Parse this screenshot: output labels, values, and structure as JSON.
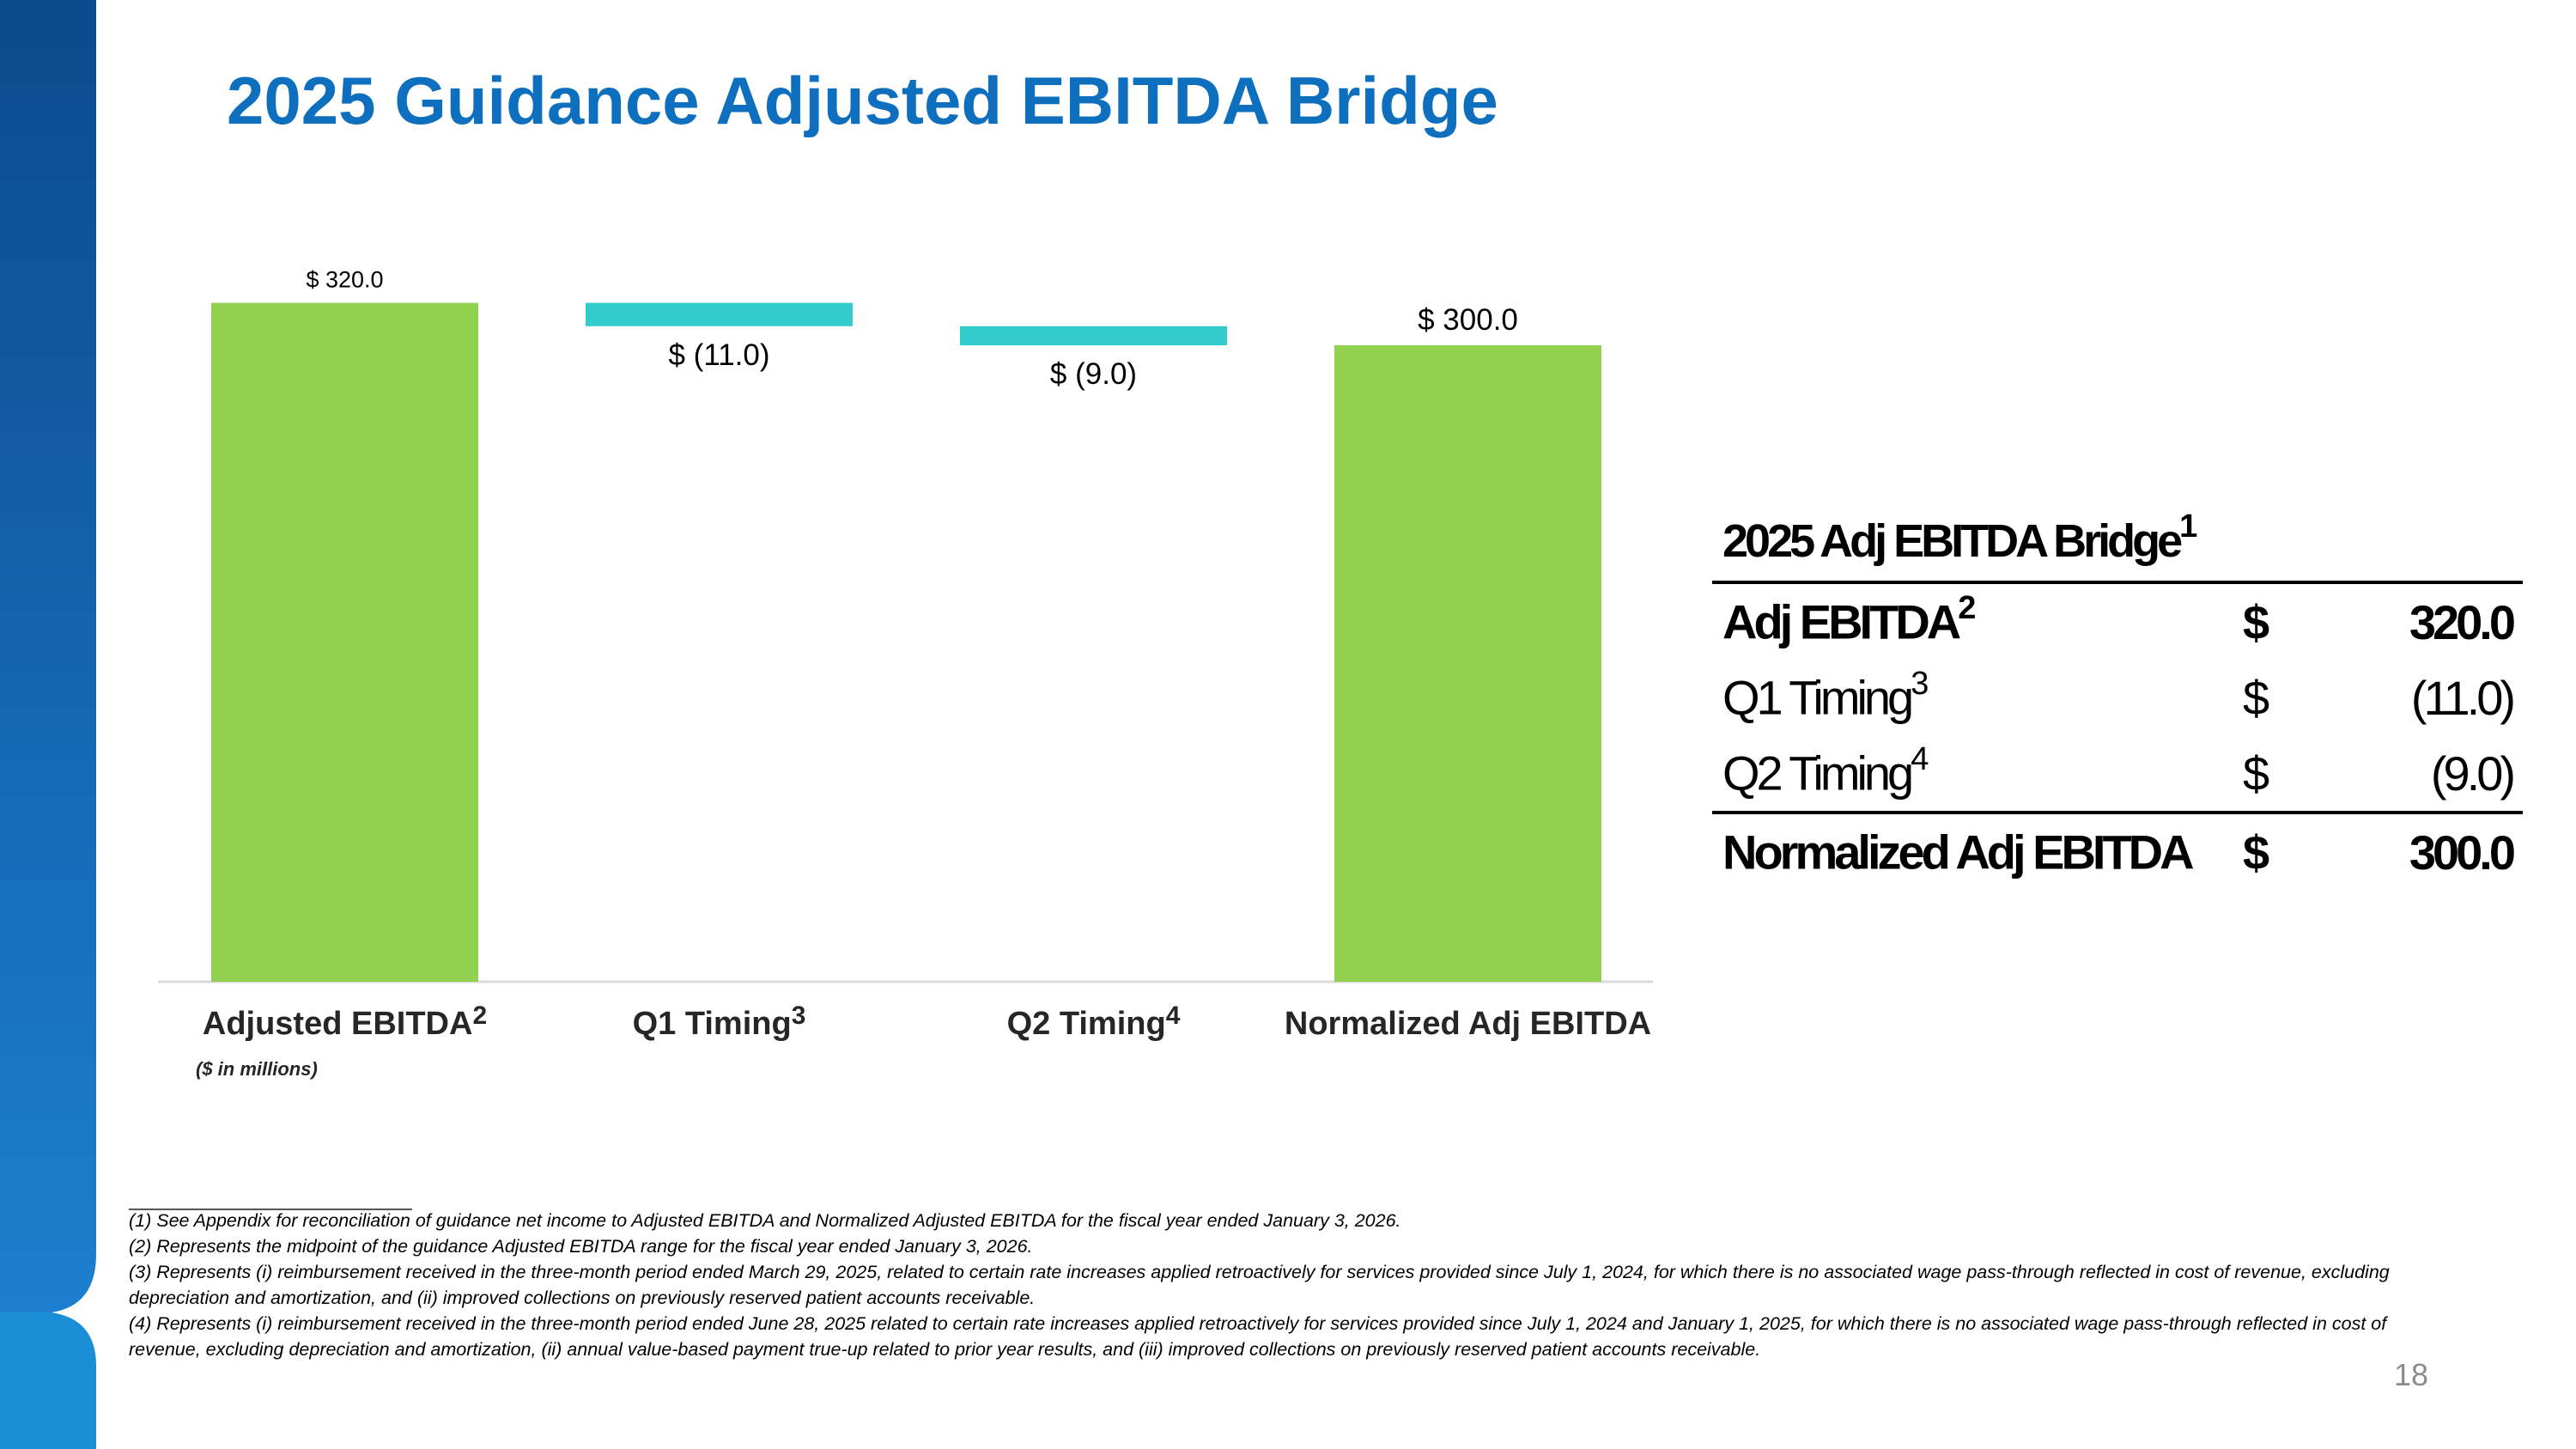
{
  "title": "2025 Guidance Adjusted EBITDA Bridge",
  "colors": {
    "title": "#0e6fbe",
    "total_bar": "#92d050",
    "delta_bar": "#33cccc",
    "sidebar_dark": "#0b4a8c",
    "sidebar_light": "#1d7fd0"
  },
  "chart_data": {
    "type": "bar",
    "subtype": "waterfall",
    "categories": [
      "Adjusted EBITDA",
      "Q1 Timing",
      "Q2 Timing",
      "Normalized Adj EBITDA"
    ],
    "category_superscripts": [
      "2",
      "3",
      "4",
      ""
    ],
    "values": [
      320.0,
      -11.0,
      -9.0,
      300.0
    ],
    "is_total": [
      true,
      false,
      false,
      true
    ],
    "data_labels": [
      "$ 320.0",
      "$ (11.0)",
      "$ (9.0)",
      "$ 300.0"
    ],
    "unit_note": "($ in millions)",
    "ylim": [
      0,
      320
    ]
  },
  "table": {
    "title": "2025 Adj EBITDA Bridge",
    "title_sup": "1",
    "rows": [
      {
        "label": "Adj EBITDA",
        "sup": "2",
        "currency": "$",
        "value": "320.0",
        "bold": true
      },
      {
        "label": "Q1 Timing",
        "sup": "3",
        "currency": "$",
        "value": "(11.0)",
        "bold": false
      },
      {
        "label": "Q2 Timing",
        "sup": "4",
        "currency": "$",
        "value": "(9.0)",
        "bold": false
      },
      {
        "label": "Normalized Adj EBITDA",
        "sup": "",
        "currency": "$",
        "value": "300.0",
        "bold": true
      }
    ]
  },
  "footnotes": [
    "(1) See Appendix for reconciliation of guidance net income to Adjusted EBITDA and Normalized Adjusted EBITDA for the fiscal year ended January 3, 2026.",
    "(2) Represents the midpoint of the guidance Adjusted EBITDA range for the fiscal year ended January 3, 2026.",
    "(3) Represents (i) reimbursement received in the three-month period ended March 29, 2025, related to certain rate increases applied retroactively for services provided since July 1, 2024, for which there is no associated wage pass-through reflected in cost of revenue, excluding depreciation and amortization, and (ii) improved collections on previously reserved patient accounts receivable.",
    "(4) Represents (i) reimbursement received in the three-month period ended June 28, 2025 related to certain rate increases applied retroactively for services provided since July 1, 2024 and January 1, 2025, for which there is no associated wage pass-through reflected in cost of revenue, excluding depreciation and amortization, (ii) annual value-based payment true-up related to prior year results, and (iii) improved collections on previously reserved patient accounts receivable."
  ],
  "page_number": "18"
}
